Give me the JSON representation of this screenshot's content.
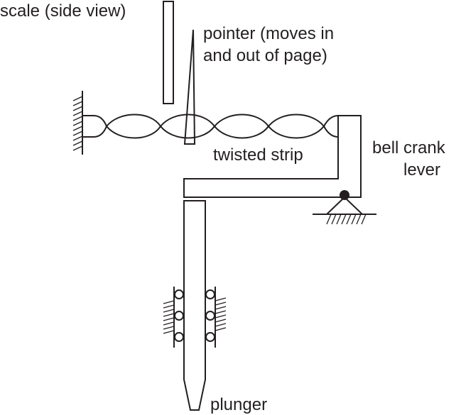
{
  "labels": {
    "scale": "scale (side view)",
    "pointer_line1": "pointer (moves in",
    "pointer_line2": "and out of page)",
    "twisted_strip": "twisted strip",
    "bell_crank_line1": "bell crank",
    "bell_crank_line2": "lever",
    "plunger": "plunger"
  },
  "colors": {
    "ink": "#231f20",
    "background": "#ffffff"
  }
}
